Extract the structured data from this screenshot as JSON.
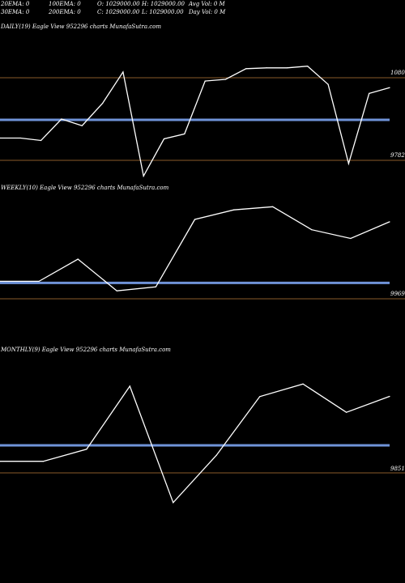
{
  "header": {
    "ema20": "20EMA: 0",
    "ema100": "100EMA: 0",
    "open": "O: 1029000.00",
    "high": "H: 1029000.00",
    "avg_vol": "Avg Vol: 0 M",
    "ema30": "30EMA: 0",
    "ema200": "200EMA: 0",
    "close": "C: 1029000.00",
    "low": "L: 1029000.00",
    "day_vol": "Day Vol: 0 M"
  },
  "colors": {
    "background": "#000000",
    "price_line": "#ffffff",
    "ema_line": "#6f93d8",
    "level_line": "#8a5a2a"
  },
  "chart_data": [
    {
      "type": "line",
      "title": "DAILY(19) Eagle  View  952296  charts MunafaSutra.com",
      "y_labels": [
        "1080",
        "9782"
      ],
      "values": [
        0.27,
        0.27,
        0.24,
        0.5,
        0.42,
        0.69,
        1.07,
        -0.19,
        0.26,
        0.32,
        0.96,
        0.98,
        1.11,
        1.12,
        1.12,
        1.14,
        0.92,
        -0.04,
        0.81,
        0.88
      ],
      "ema_level": 0.49,
      "levels": [
        1.0,
        0.0
      ]
    },
    {
      "type": "line",
      "title": "WEEKLY(10) Eagle  View  952296  charts MunafaSutra.com",
      "y_labels": [
        "9969"
      ],
      "values": [
        0.22,
        0.22,
        0.5,
        0.1,
        0.15,
        1.0,
        1.12,
        1.16,
        0.87,
        0.76,
        0.97
      ],
      "ema_level": 0.2,
      "levels": [
        0.0
      ]
    },
    {
      "type": "line",
      "title": "MONTHLY(9) Eagle  View  952296  charts MunafaSutra.com",
      "y_labels": [
        "9851"
      ],
      "values": [
        0.42,
        0.42,
        0.86,
        3.15,
        -1.08,
        0.64,
        2.77,
        3.23,
        2.2,
        2.78
      ],
      "ema_level": 1.0,
      "levels": [
        0.0
      ]
    }
  ]
}
